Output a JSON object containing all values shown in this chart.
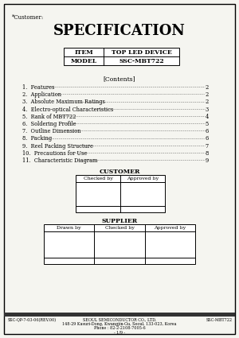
{
  "title": "SPECIFICATION",
  "customer_label": "*Customer:",
  "item_label": "ITEM",
  "item_value": "TOP LED DEVICE",
  "model_label": "MODEL",
  "model_value": "SSC-MBT722",
  "contents_header": "[Contents]",
  "contents": [
    [
      "1.  Features",
      "2"
    ],
    [
      "2.  Application",
      "2"
    ],
    [
      "3.  Absolute Maximum Ratings",
      "2"
    ],
    [
      "4.  Electro-optical Characteristics",
      "3"
    ],
    [
      "5.  Rank of MBT722",
      "4"
    ],
    [
      "6.  Soldering Profile",
      "5"
    ],
    [
      "7.  Outline Dimension",
      "6"
    ],
    [
      "8.  Packing",
      "6"
    ],
    [
      "9.  Reel Packing Structure",
      "7"
    ],
    [
      "10.  Precautions for Use",
      "8"
    ],
    [
      "11.  Characteristic Diagram",
      "9"
    ]
  ],
  "customer_section": "CUSTOMER",
  "customer_cols": [
    "Checked by",
    "Approved by"
  ],
  "supplier_section": "SUPPLIER",
  "supplier_cols": [
    "Drawn by",
    "Checked by",
    "Approved by"
  ],
  "footer_left": "SSC-QP-7-03-06(REV.00)",
  "footer_center_line1": "SEOUL SEMICONDUCTOR CO., LTD.",
  "footer_center_line2": "148-29 Kasuri-Dong, Kwangjin-Gu, Seoul, 133-023, Korea",
  "footer_center_line3": "Phone : 82-2-2108-7005-6",
  "footer_center_line4": "- 1/9 -",
  "footer_right": "SSC-MBT722",
  "bg_color": "#f5f5f0",
  "border_color": "#000000",
  "footer_bar_color": "#333333"
}
